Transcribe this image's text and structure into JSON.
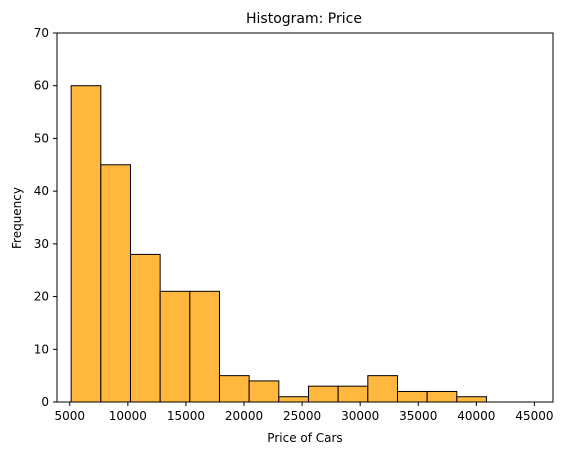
{
  "chart_data": {
    "type": "bar",
    "title": "Histogram: Price",
    "xlabel": "Price of Cars",
    "ylabel": "Frequency",
    "xlim": [
      3900,
      46600
    ],
    "ylim": [
      0,
      70
    ],
    "bar_color": "#FFB83D",
    "edge_color": "#000000",
    "bins": [
      {
        "start": 5118,
        "end": 7672,
        "count": 60
      },
      {
        "start": 7672,
        "end": 10226,
        "count": 45
      },
      {
        "start": 10226,
        "end": 12780,
        "count": 28
      },
      {
        "start": 12780,
        "end": 15334,
        "count": 21
      },
      {
        "start": 15334,
        "end": 17888,
        "count": 21
      },
      {
        "start": 17888,
        "end": 20442,
        "count": 5
      },
      {
        "start": 20442,
        "end": 22996,
        "count": 4
      },
      {
        "start": 22996,
        "end": 25550,
        "count": 1
      },
      {
        "start": 25550,
        "end": 28104,
        "count": 3
      },
      {
        "start": 28104,
        "end": 30658,
        "count": 3
      },
      {
        "start": 30658,
        "end": 33212,
        "count": 5
      },
      {
        "start": 33212,
        "end": 35766,
        "count": 2
      },
      {
        "start": 35766,
        "end": 38320,
        "count": 2
      },
      {
        "start": 38320,
        "end": 40874,
        "count": 1
      }
    ],
    "x_ticks": [
      5000,
      10000,
      15000,
      20000,
      25000,
      30000,
      35000,
      40000,
      45000
    ],
    "x_tick_labels": [
      "5000",
      "10000",
      "15000",
      "20000",
      "25000",
      "30000",
      "35000",
      "40000",
      "45000"
    ],
    "y_ticks": [
      0,
      10,
      20,
      30,
      40,
      50,
      60,
      70
    ],
    "y_tick_labels": [
      "0",
      "10",
      "20",
      "30",
      "40",
      "50",
      "60",
      "70"
    ]
  }
}
